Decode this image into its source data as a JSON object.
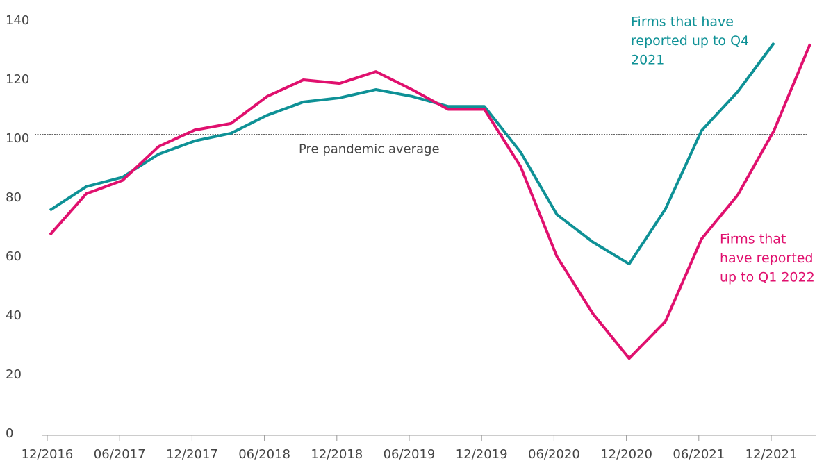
{
  "chart_data": {
    "type": "line",
    "categories": [
      "12/2016",
      null,
      "06/2017",
      null,
      "12/2017",
      null,
      "06/2018",
      null,
      "12/2018",
      null,
      "06/2019",
      null,
      "12/2019",
      null,
      "06/2020",
      null,
      "12/2020",
      null,
      "06/2021",
      null,
      "12/2021",
      null
    ],
    "series": [
      {
        "name": "Firms that have reported up to Q4 2021",
        "color": "#0e9196",
        "values": [
          75.8,
          83.8,
          87,
          94.8,
          99.3,
          101.9,
          108,
          112.5,
          113.9,
          116.7,
          114.4,
          111,
          111,
          95.5,
          74.4,
          65,
          57.6,
          76.2,
          102.8,
          116,
          132.5,
          null
        ]
      },
      {
        "name": "Firms that have reported up to Q1 2022",
        "color": "#e0106e",
        "values": [
          67.5,
          81.4,
          85.9,
          97.4,
          103,
          105.2,
          114.4,
          120,
          118.8,
          122.8,
          116.7,
          110,
          110,
          90.6,
          60.2,
          40.7,
          25.6,
          38.1,
          66.1,
          81,
          102.8,
          132.2
        ]
      }
    ],
    "annotations": [
      {
        "lines": [
          "Firms that have",
          "reported up to Q4",
          "2021"
        ],
        "color": "#0e9196"
      },
      {
        "lines": [
          "Firms that",
          "have reported",
          "up to Q1 2022"
        ],
        "color": "#e0106e"
      }
    ],
    "reference_line": {
      "value": 101.5,
      "label": "Pre pandemic average"
    },
    "ylim": [
      0,
      140
    ],
    "yticks": [
      0,
      20,
      40,
      60,
      80,
      100,
      120,
      140
    ],
    "grid": false
  }
}
